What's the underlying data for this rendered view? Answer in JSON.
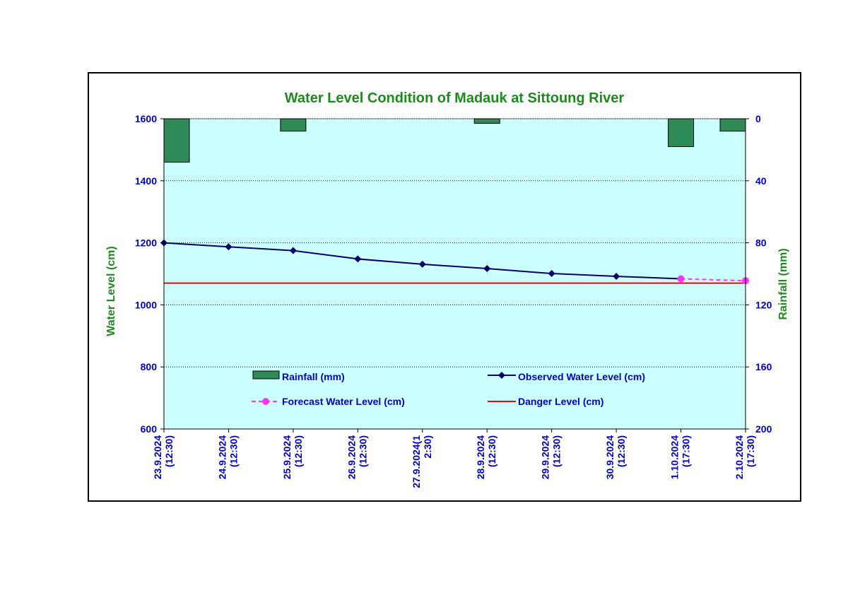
{
  "colors": {
    "title": "#1e8a1e",
    "axis_label": "#1e8a1e",
    "tick_label": "#0000c8",
    "plot_bg": "#ccffff",
    "rain_fill": "#2e8b57",
    "observed": "#000066",
    "forecast": "#ff33ff",
    "danger": "#ff0000",
    "grid": "#000000"
  },
  "chart_data": {
    "type": "line",
    "title": "Water Level Condition of Madauk at Sittoung River",
    "ylabel": "Water Level (cm)",
    "y2label": "Rainfall (mm)",
    "ylim": [
      600,
      1600
    ],
    "yticks": [
      600,
      800,
      1000,
      1200,
      1400,
      1600
    ],
    "y2lim": [
      200,
      0
    ],
    "y2ticks": [
      0,
      40,
      80,
      120,
      160,
      200
    ],
    "grid": true,
    "categories": [
      [
        "23.9.2024",
        "(12:30)"
      ],
      [
        "24.9.2024",
        "(12:30)"
      ],
      [
        "25.9.2024",
        "(12:30)"
      ],
      [
        "26.9.2024",
        "(12:30)"
      ],
      [
        "27.9.2024(1",
        "2:30)"
      ],
      [
        "28.9.2024",
        "(12:30)"
      ],
      [
        "29.9.2024",
        "(12:30)"
      ],
      [
        "30.9.2024",
        "(12:30)"
      ],
      [
        "1.10.2024",
        "(17:30)"
      ],
      [
        "2.10.2024",
        "(17:30)"
      ]
    ],
    "series": [
      {
        "name": "Rainfall (mm)",
        "kind": "bar",
        "axis": "right",
        "values": [
          28,
          null,
          8,
          null,
          null,
          3,
          null,
          null,
          18,
          8
        ]
      },
      {
        "name": "Observed Water Level (cm)",
        "kind": "line",
        "axis": "left",
        "values": [
          1200,
          1187,
          1175,
          1148,
          1131,
          1117,
          1101,
          1092,
          1084,
          null
        ]
      },
      {
        "name": "Forecast Water Level (cm)",
        "kind": "dashed",
        "axis": "left",
        "values": [
          null,
          null,
          null,
          null,
          null,
          null,
          null,
          null,
          1084,
          1078
        ]
      },
      {
        "name": "Danger Level (cm)",
        "kind": "constant",
        "axis": "left",
        "value": 1070
      }
    ],
    "legend_position": "inside-bottom"
  }
}
